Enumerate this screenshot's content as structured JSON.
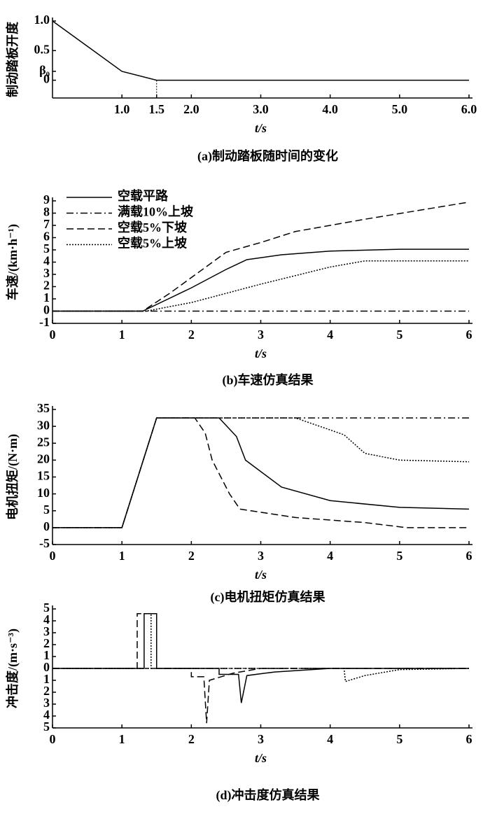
{
  "chart_data": [
    {
      "type": "line",
      "title": "(a)制动踏板随时间的变化",
      "xlabel": "t/s",
      "ylabel": "制动踏板开度",
      "xlim": [
        0,
        6
      ],
      "ylim": [
        -0.3,
        1
      ],
      "xticks": [
        {
          "value": 1,
          "label": "1.0"
        },
        1.5,
        {
          "value": 2,
          "label": "2.0"
        },
        {
          "value": 3,
          "label": "3.0"
        },
        {
          "value": 4,
          "label": "4.0"
        },
        {
          "value": 5,
          "label": "5.0"
        },
        {
          "value": 6,
          "label": "6.0"
        }
      ],
      "yticks": [
        {
          "value": 1,
          "label": "1.0"
        },
        0.5,
        {
          "value": 0.15,
          "label": "β₀"
        },
        0
      ],
      "series": [
        {
          "color": "#000000",
          "dash": "solid",
          "x": [
            0,
            1,
            1.5,
            6
          ],
          "values": [
            1,
            0.15,
            0,
            0
          ]
        }
      ]
    },
    {
      "type": "line",
      "title": "(b)车速仿真结果",
      "xlabel": "t/s",
      "ylabel": "车速/(km·h⁻¹)",
      "xlim": [
        0,
        6
      ],
      "ylim": [
        -1,
        9
      ],
      "xticks": [
        0,
        1,
        2,
        3,
        4,
        5,
        6
      ],
      "yticks": [
        9,
        8,
        7,
        6,
        5,
        4,
        3,
        2,
        1,
        0,
        -1
      ],
      "legend": "upper left",
      "series": [
        {
          "name": "空载平路",
          "color": "#000000",
          "dash": "solid",
          "x": [
            0,
            1.3,
            2,
            2.5,
            2.8,
            3.3,
            4,
            5,
            6
          ],
          "values": [
            0,
            0,
            1.9,
            3.4,
            4.2,
            4.6,
            4.9,
            5.05,
            5.05
          ]
        },
        {
          "name": "满载10%上坡",
          "color": "#000000",
          "dash": "dashdot",
          "x": [
            0,
            6
          ],
          "values": [
            0,
            0
          ]
        },
        {
          "name": "空载5%下坡",
          "color": "#000000",
          "dash": "dashed",
          "x": [
            0,
            1.3,
            1.7,
            2.5,
            3,
            3.5,
            4.5,
            6
          ],
          "values": [
            0,
            0,
            1.5,
            4.8,
            5.6,
            6.5,
            7.5,
            8.9
          ]
        },
        {
          "name": "空载5%上坡",
          "color": "#000000",
          "dash": "dotted",
          "x": [
            0,
            1.35,
            2,
            3,
            4,
            4.5,
            6
          ],
          "values": [
            0,
            0,
            0.7,
            2.2,
            3.6,
            4.1,
            4.1
          ]
        }
      ]
    },
    {
      "type": "line",
      "title": "(c)电机扭矩仿真结果",
      "xlabel": "t/s",
      "ylabel": "电机扭矩/(N·m)",
      "xlim": [
        0,
        6
      ],
      "ylim": [
        -5,
        35
      ],
      "xticks": [
        0,
        1,
        2,
        3,
        4,
        5,
        6
      ],
      "yticks": [
        35,
        30,
        25,
        20,
        15,
        10,
        5,
        0,
        -5
      ],
      "series": [
        {
          "color": "#000000",
          "dash": "solid",
          "x": [
            0,
            1,
            1.5,
            2.4,
            2.65,
            2.78,
            3.3,
            4,
            5,
            6
          ],
          "values": [
            0,
            0,
            32.5,
            32.5,
            27,
            20,
            12,
            8,
            6,
            5.5
          ]
        },
        {
          "color": "#000000",
          "dash": "dashdot",
          "x": [
            0,
            1,
            1.5,
            6
          ],
          "values": [
            0,
            0,
            32.5,
            32.5
          ]
        },
        {
          "color": "#000000",
          "dash": "dashed",
          "x": [
            0,
            1,
            1.5,
            2.05,
            2.2,
            2.3,
            2.55,
            2.7,
            3.5,
            4.5,
            5.1,
            6
          ],
          "values": [
            0,
            0,
            32.5,
            32.5,
            28,
            20,
            10,
            5.5,
            3,
            1.5,
            0,
            0
          ]
        },
        {
          "color": "#000000",
          "dash": "dotted",
          "x": [
            0,
            1,
            1.5,
            3.5,
            4.2,
            4.5,
            5,
            6
          ],
          "values": [
            0,
            0,
            32.5,
            32.5,
            27.5,
            22,
            20,
            19.5
          ]
        }
      ]
    },
    {
      "type": "line",
      "title": "(d)冲击度仿真结果",
      "xlabel": "t/s",
      "ylabel": "冲击度/(m·s⁻³)",
      "xlim": [
        0,
        6
      ],
      "ylim": [
        -5,
        5
      ],
      "xticks": [
        0,
        1,
        2,
        3,
        4,
        5,
        6
      ],
      "yticks": [
        5,
        4,
        3,
        2,
        1,
        0,
        {
          "value": -1,
          "label": "1"
        },
        {
          "value": -2,
          "label": "2"
        },
        {
          "value": -3,
          "label": "3"
        },
        {
          "value": -4,
          "label": "4"
        },
        {
          "value": -5,
          "label": "5"
        }
      ],
      "series": [
        {
          "color": "#000000",
          "dash": "solid",
          "x": [
            0,
            1.32,
            1.32,
            1.5,
            1.5,
            2.4,
            2.4,
            2.68,
            2.72,
            2.8,
            3.2,
            4,
            6
          ],
          "values": [
            0,
            0,
            4.6,
            4.6,
            0,
            0,
            -0.5,
            -0.5,
            -2.9,
            -0.6,
            -0.3,
            0,
            0
          ]
        },
        {
          "color": "#000000",
          "dash": "dashdot",
          "x": [
            0,
            6
          ],
          "values": [
            0,
            0
          ]
        },
        {
          "color": "#000000",
          "dash": "dashed",
          "x": [
            0,
            1.22,
            1.22,
            1.5,
            1.5,
            2,
            2,
            2.18,
            2.22,
            2.26,
            2.6,
            3,
            6
          ],
          "values": [
            0,
            0,
            4.6,
            4.6,
            0,
            0,
            -0.7,
            -0.7,
            -4.6,
            -1,
            -0.4,
            0,
            0
          ]
        },
        {
          "color": "#000000",
          "dash": "dotted",
          "x": [
            0,
            1.42,
            1.42,
            1.5,
            1.5,
            4.2,
            4.22,
            4.5,
            5,
            6
          ],
          "values": [
            0,
            0,
            4.6,
            4.6,
            0,
            0,
            -1.1,
            -0.6,
            -0.1,
            0
          ]
        }
      ]
    }
  ]
}
